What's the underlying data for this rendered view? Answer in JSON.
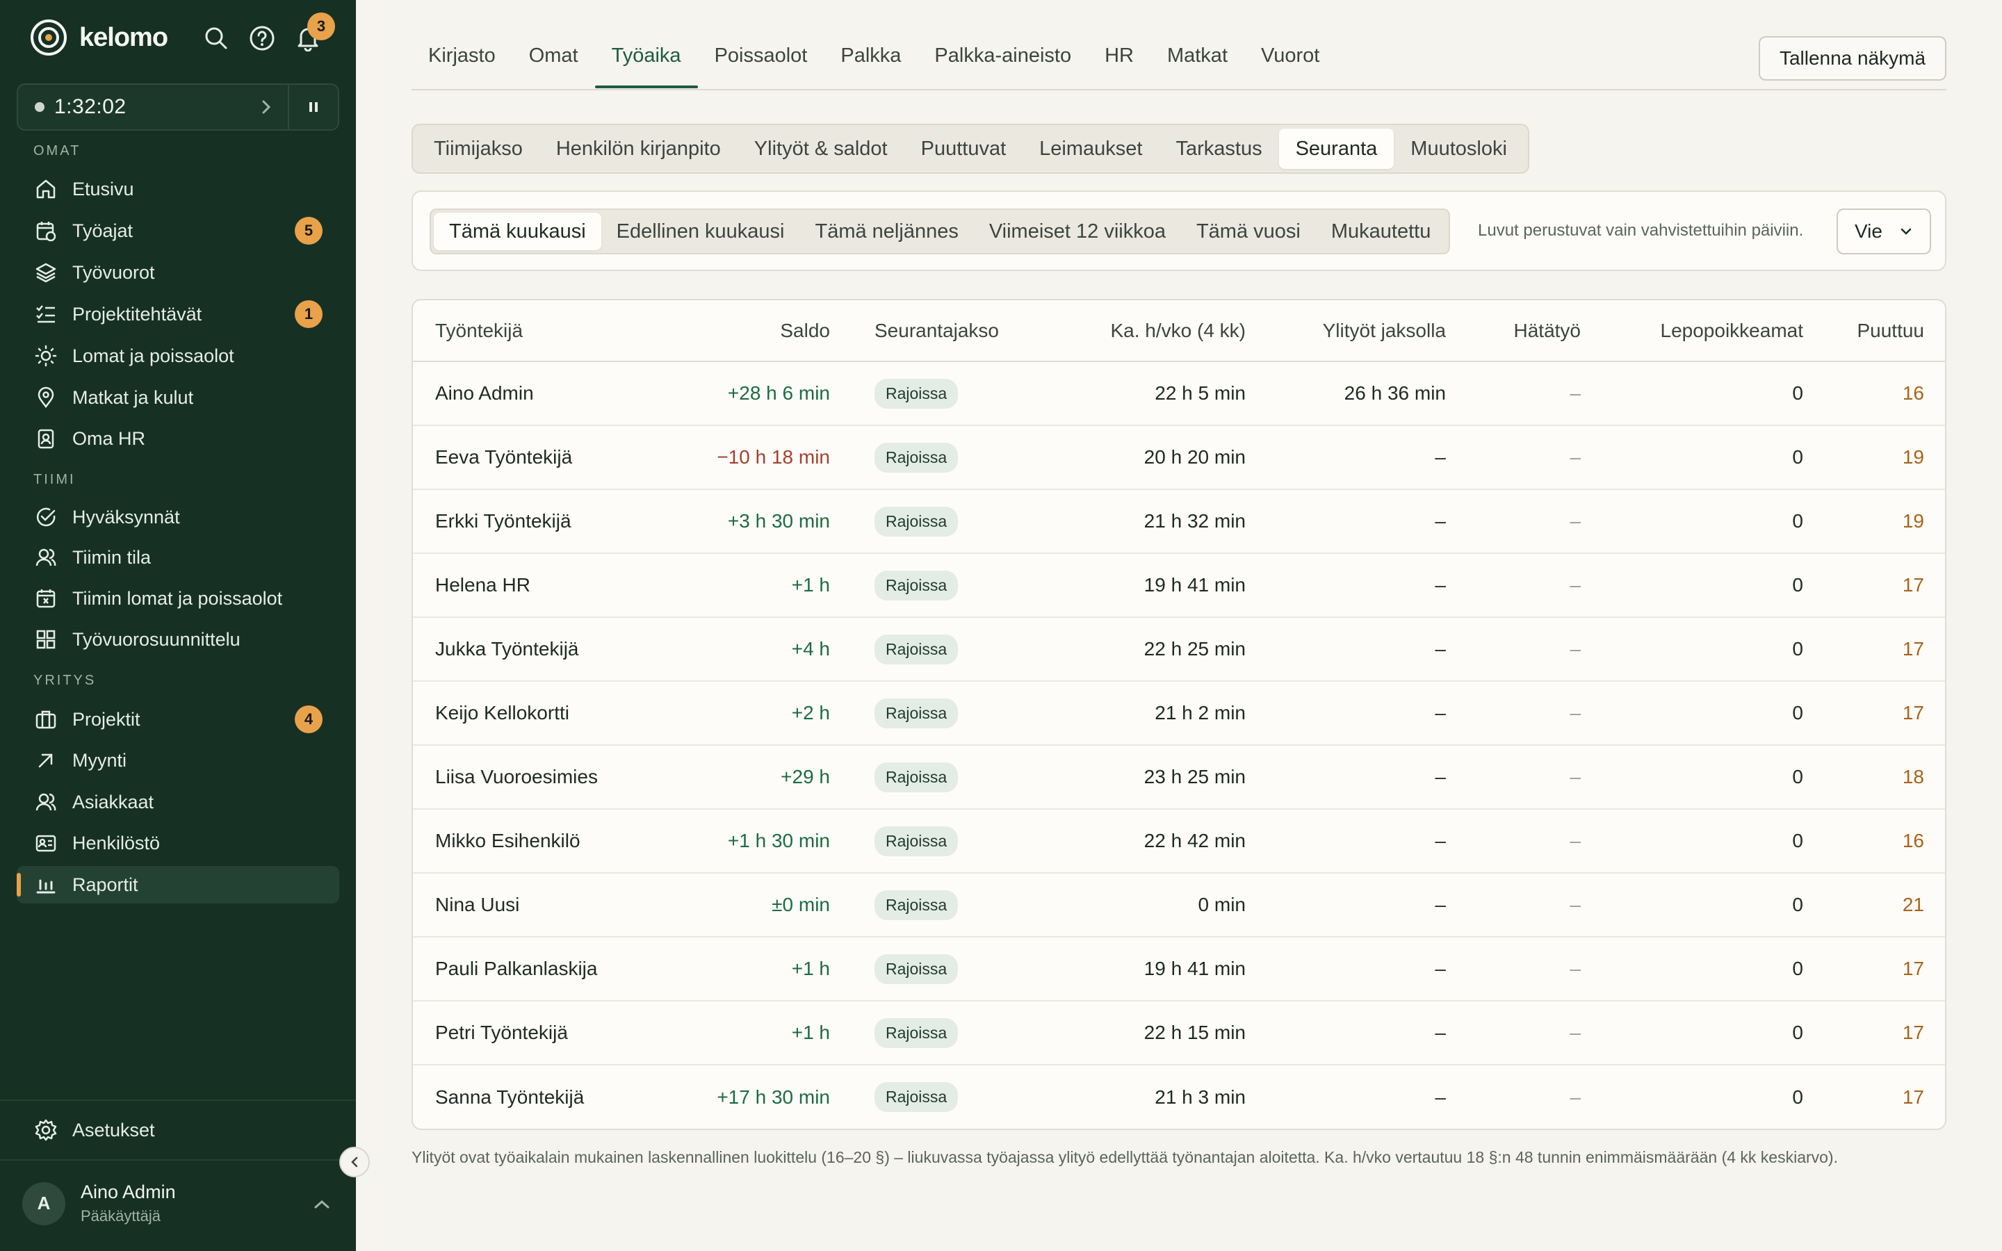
{
  "app": {
    "name": "kelomo",
    "notifications_count": "3"
  },
  "timer": {
    "value": "1:32:02"
  },
  "sidebar": {
    "section_omat": "OMAT",
    "section_tiimi": "TIIMI",
    "section_yritys": "YRITYS",
    "omat": [
      {
        "label": "Etusivu",
        "icon": "home-icon"
      },
      {
        "label": "Työajat",
        "icon": "calendar-clock-icon",
        "badge": "5"
      },
      {
        "label": "Työvuorot",
        "icon": "layers-icon"
      },
      {
        "label": "Projektitehtävät",
        "icon": "checklist-icon",
        "badge": "1"
      },
      {
        "label": "Lomat ja poissaolot",
        "icon": "sun-icon"
      },
      {
        "label": "Matkat ja kulut",
        "icon": "map-pin-icon"
      },
      {
        "label": "Oma HR",
        "icon": "badge-icon"
      }
    ],
    "tiimi": [
      {
        "label": "Hyväksynnät",
        "icon": "check-circle-icon"
      },
      {
        "label": "Tiimin tila",
        "icon": "users-icon"
      },
      {
        "label": "Tiimin lomat ja poissaolot",
        "icon": "calendar-x-icon"
      },
      {
        "label": "Työvuorosuunnittelu",
        "icon": "grid-icon"
      }
    ],
    "yritys": [
      {
        "label": "Projektit",
        "icon": "briefcase-icon",
        "badge": "4"
      },
      {
        "label": "Myynti",
        "icon": "arrow-up-right-icon"
      },
      {
        "label": "Asiakkaat",
        "icon": "users-icon"
      },
      {
        "label": "Henkilöstö",
        "icon": "id-card-icon"
      },
      {
        "label": "Raportit",
        "icon": "bar-chart-icon",
        "active": true
      }
    ],
    "settings": "Asetukset",
    "user": {
      "initial": "A",
      "name": "Aino Admin",
      "role": "Pääkäyttäjä"
    }
  },
  "top_tabs": [
    "Kirjasto",
    "Omat",
    "Työaika",
    "Poissaolot",
    "Palkka",
    "Palkka-aineisto",
    "HR",
    "Matkat",
    "Vuorot"
  ],
  "top_tab_active": "Työaika",
  "save_view_label": "Tallenna näkymä",
  "sub_tabs": [
    "Tiimijakso",
    "Henkilön kirjanpito",
    "Ylityöt & saldot",
    "Puuttuvat",
    "Leimaukset",
    "Tarkastus",
    "Seuranta",
    "Muutosloki"
  ],
  "sub_tab_active": "Seuranta",
  "periods": [
    "Tämä kuukausi",
    "Edellinen kuukausi",
    "Tämä neljännes",
    "Viimeiset 12 viikkoa",
    "Tämä vuosi",
    "Mukautettu"
  ],
  "period_active": "Tämä kuukausi",
  "filter_note": "Luvut perustuvat vain vahvistettuihin päiviin.",
  "export_label": "Vie",
  "table": {
    "headers": [
      "Työntekijä",
      "Saldo",
      "Seurantajakso",
      "Ka. h/vko (4 kk)",
      "Ylityöt jaksolla",
      "Hätätyö",
      "Lepopoikkeamat",
      "Puuttuu"
    ],
    "rows": [
      {
        "name": "Aino Admin",
        "saldo": "+28 h 6 min",
        "neg": false,
        "status": "Rajoissa",
        "avg": "22 h 5 min",
        "ot": "26 h 36 min",
        "emg": "–",
        "rest": "0",
        "miss": "16"
      },
      {
        "name": "Eeva Työntekijä",
        "saldo": "−10 h 18 min",
        "neg": true,
        "status": "Rajoissa",
        "avg": "20 h 20 min",
        "ot": "–",
        "emg": "–",
        "rest": "0",
        "miss": "19"
      },
      {
        "name": "Erkki Työntekijä",
        "saldo": "+3 h 30 min",
        "neg": false,
        "status": "Rajoissa",
        "avg": "21 h 32 min",
        "ot": "–",
        "emg": "–",
        "rest": "0",
        "miss": "19"
      },
      {
        "name": "Helena HR",
        "saldo": "+1 h",
        "neg": false,
        "status": "Rajoissa",
        "avg": "19 h 41 min",
        "ot": "–",
        "emg": "–",
        "rest": "0",
        "miss": "17"
      },
      {
        "name": "Jukka Työntekijä",
        "saldo": "+4 h",
        "neg": false,
        "status": "Rajoissa",
        "avg": "22 h 25 min",
        "ot": "–",
        "emg": "–",
        "rest": "0",
        "miss": "17"
      },
      {
        "name": "Keijo Kellokortti",
        "saldo": "+2 h",
        "neg": false,
        "status": "Rajoissa",
        "avg": "21 h 2 min",
        "ot": "–",
        "emg": "–",
        "rest": "0",
        "miss": "17"
      },
      {
        "name": "Liisa Vuoroesimies",
        "saldo": "+29 h",
        "neg": false,
        "status": "Rajoissa",
        "avg": "23 h 25 min",
        "ot": "–",
        "emg": "–",
        "rest": "0",
        "miss": "18"
      },
      {
        "name": "Mikko Esihenkilö",
        "saldo": "+1 h 30 min",
        "neg": false,
        "status": "Rajoissa",
        "avg": "22 h 42 min",
        "ot": "–",
        "emg": "–",
        "rest": "0",
        "miss": "16"
      },
      {
        "name": "Nina Uusi",
        "saldo": "±0 min",
        "neg": false,
        "status": "Rajoissa",
        "avg": "0 min",
        "ot": "–",
        "emg": "–",
        "rest": "0",
        "miss": "21"
      },
      {
        "name": "Pauli Palkanlaskija",
        "saldo": "+1 h",
        "neg": false,
        "status": "Rajoissa",
        "avg": "19 h 41 min",
        "ot": "–",
        "emg": "–",
        "rest": "0",
        "miss": "17"
      },
      {
        "name": "Petri Työntekijä",
        "saldo": "+1 h",
        "neg": false,
        "status": "Rajoissa",
        "avg": "22 h 15 min",
        "ot": "–",
        "emg": "–",
        "rest": "0",
        "miss": "17"
      },
      {
        "name": "Sanna Työntekijä",
        "saldo": "+17 h 30 min",
        "neg": false,
        "status": "Rajoissa",
        "avg": "21 h 3 min",
        "ot": "–",
        "emg": "–",
        "rest": "0",
        "miss": "17"
      }
    ]
  },
  "footnote": "Ylityöt ovat työaikalain mukainen laskennallinen luokittelu (16–20 §) – liukuvassa työajassa ylityö edellyttää työnantajan aloitetta. Ka. h/vko vertautuu 18 §:n 48 tunnin enimmäismäärään (4 kk keskiarvo).",
  "colors": {
    "sidebar_bg": "#173024",
    "accent_green": "#1d5c3f",
    "badge_orange": "#e8a24a",
    "negative": "#a3412f",
    "missing": "#a8641a"
  }
}
